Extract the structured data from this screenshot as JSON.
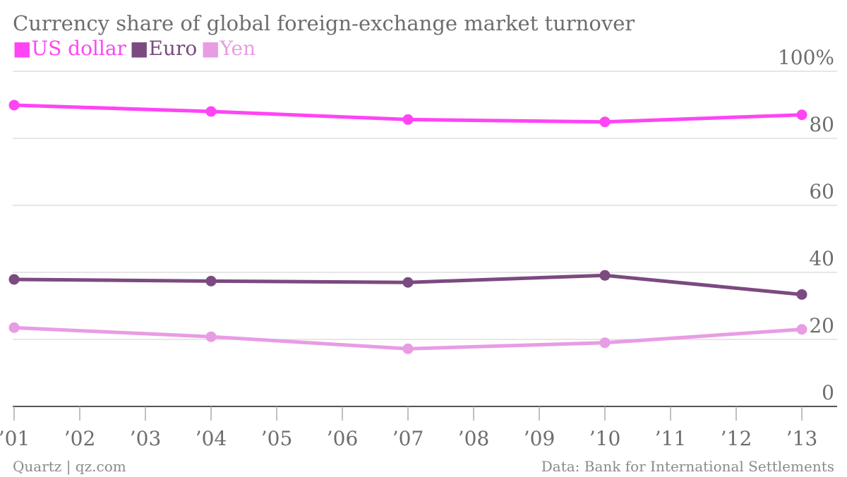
{
  "chart_data": {
    "type": "line",
    "title": "Currency share of global foreign-exchange market turnover",
    "x": [
      "'01",
      "'04",
      "'07",
      "'10",
      "'13"
    ],
    "x_ticks": [
      "’01",
      "’02",
      "’03",
      "’04",
      "’05",
      "’06",
      "’07",
      "’08",
      "’09",
      "’10",
      "’11",
      "’12",
      "’13"
    ],
    "x_years": [
      2001,
      2004,
      2007,
      2010,
      2013
    ],
    "x_range": [
      2001,
      2013
    ],
    "y_ticks": [
      "0",
      "20",
      "40",
      "60",
      "80",
      "100%"
    ],
    "ylim": [
      0,
      100
    ],
    "grid": true,
    "legend_placement": "top-left",
    "series": [
      {
        "name": "US dollar",
        "color": "#ff44f5",
        "values": [
          89.9,
          88.0,
          85.6,
          84.9,
          87.0
        ]
      },
      {
        "name": "Euro",
        "color": "#7b4a80",
        "values": [
          37.9,
          37.4,
          37.0,
          39.1,
          33.4
        ]
      },
      {
        "name": "Yen",
        "color": "#e89ce4",
        "values": [
          23.5,
          20.8,
          17.2,
          19.0,
          23.0
        ]
      }
    ],
    "legend_marker": "■",
    "source": "Data: Bank for International Settlements",
    "credit": "Quartz | qz.com"
  },
  "colors": {
    "grid": "#dddddd",
    "axis": "#555555",
    "text": "#6d6d6d",
    "footer": "#8a8a8a"
  }
}
